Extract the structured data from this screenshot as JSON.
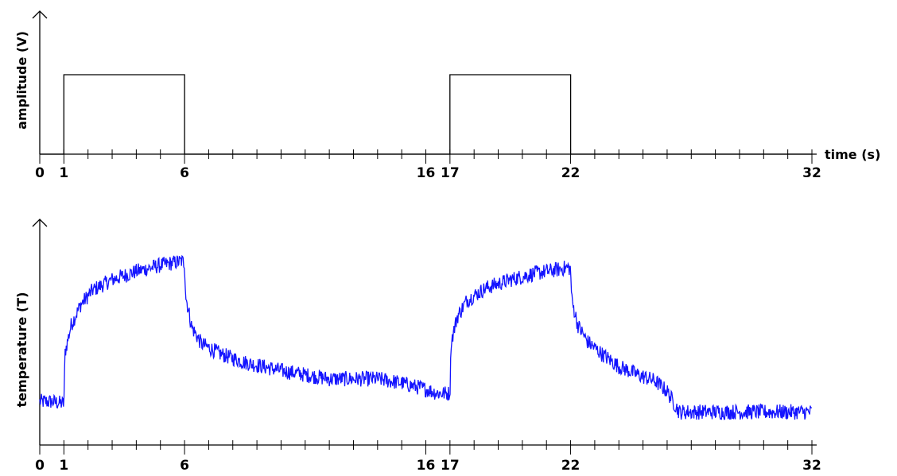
{
  "chart_data": [
    {
      "type": "line",
      "ylabel": "amplitude (V)",
      "xlabel": "time (s)",
      "xlim": [
        0,
        32
      ],
      "ylim": [
        0,
        1.2
      ],
      "tick_labels": [
        "0",
        "1",
        "6",
        "16",
        "17",
        "22",
        "32"
      ],
      "tick_values": [
        0,
        1,
        6,
        16,
        17,
        22,
        32
      ],
      "series": [
        {
          "x": [
            0,
            1,
            1,
            6,
            6,
            17,
            17,
            22,
            22,
            32
          ],
          "y": [
            0,
            0,
            1,
            1,
            0,
            0,
            1,
            1,
            0,
            0
          ]
        }
      ]
    },
    {
      "type": "line",
      "ylabel": "temperature (T)",
      "xlabel": "",
      "xlim": [
        0,
        32
      ],
      "ylim": [
        0,
        1
      ],
      "tick_labels": [
        "0",
        "1",
        "6",
        "16",
        "17",
        "22",
        "32"
      ],
      "tick_values": [
        0,
        1,
        6,
        16,
        17,
        22,
        32
      ],
      "series": [
        {
          "color": "#1414ff",
          "x": [
            0,
            0.5,
            1,
            1.05,
            1.3,
            1.7,
            2.2,
            3,
            4,
            5,
            5.9,
            6,
            6.05,
            6.3,
            6.7,
            7.5,
            8.5,
            10,
            12,
            14,
            15,
            16,
            16.5,
            17,
            17.05,
            17.3,
            17.7,
            18.5,
            19.5,
            20.5,
            21.5,
            21.9,
            22,
            22.05,
            22.3,
            22.7,
            23.3,
            24,
            24.8,
            25.5,
            26,
            26.5,
            27,
            28,
            30,
            32
          ],
          "y": [
            0.21,
            0.21,
            0.2,
            0.45,
            0.58,
            0.68,
            0.75,
            0.8,
            0.84,
            0.87,
            0.89,
            0.88,
            0.72,
            0.57,
            0.49,
            0.44,
            0.4,
            0.36,
            0.32,
            0.32,
            0.3,
            0.27,
            0.25,
            0.25,
            0.5,
            0.62,
            0.7,
            0.76,
            0.8,
            0.83,
            0.85,
            0.86,
            0.85,
            0.7,
            0.58,
            0.5,
            0.44,
            0.38,
            0.34,
            0.31,
            0.26,
            0.16,
            0.16,
            0.16,
            0.16,
            0.16
          ]
        }
      ]
    }
  ]
}
